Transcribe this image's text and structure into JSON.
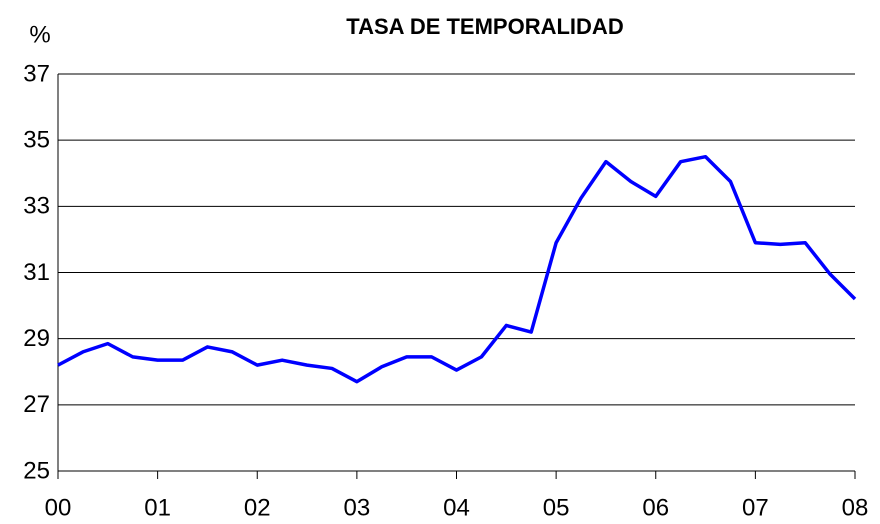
{
  "chart_data": {
    "type": "line",
    "title": "TASA DE TEMPORALIDAD",
    "y_label": "%",
    "x": [
      0,
      0.25,
      0.5,
      0.75,
      1,
      1.25,
      1.5,
      1.75,
      2,
      2.25,
      2.5,
      2.75,
      3,
      3.25,
      3.5,
      3.75,
      4,
      4.25,
      4.5,
      4.75,
      5,
      5.25,
      5.5,
      5.75,
      6,
      6.25,
      6.5,
      6.75,
      7,
      7.25,
      7.5,
      7.75,
      8
    ],
    "series": [
      {
        "color": "#0000ff",
        "values": [
          28.2,
          28.6,
          28.85,
          28.45,
          28.35,
          28.35,
          28.75,
          28.6,
          28.2,
          28.35,
          28.2,
          28.1,
          27.7,
          28.15,
          28.45,
          28.45,
          28.05,
          28.45,
          29.4,
          29.2,
          31.9,
          33.25,
          34.35,
          33.75,
          33.3,
          34.35,
          34.5,
          33.75,
          31.9,
          31.85,
          31.9,
          30.95,
          30.2
        ]
      }
    ],
    "xlim": [
      0,
      8
    ],
    "xticks": [
      {
        "value": 0,
        "label": "00"
      },
      {
        "value": 1,
        "label": "01"
      },
      {
        "value": 2,
        "label": "02"
      },
      {
        "value": 3,
        "label": "03"
      },
      {
        "value": 4,
        "label": "04"
      },
      {
        "value": 5,
        "label": "05"
      },
      {
        "value": 6,
        "label": "06"
      },
      {
        "value": 7,
        "label": "07"
      },
      {
        "value": 8,
        "label": "08"
      }
    ],
    "ylim": [
      25,
      37
    ],
    "yticks": [
      25,
      27,
      29,
      31,
      33,
      35,
      37
    ],
    "grid": true
  }
}
